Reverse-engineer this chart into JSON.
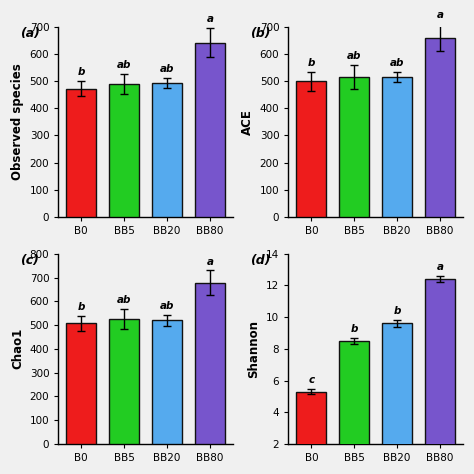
{
  "subplots": [
    {
      "label": "(a)",
      "ylabel": "Observed species",
      "ylim": [
        0,
        700
      ],
      "yticks": [
        0,
        100,
        200,
        300,
        400,
        500,
        600,
        700
      ],
      "categories": [
        "B0",
        "BB5",
        "BB20",
        "BB80"
      ],
      "values": [
        472,
        490,
        493,
        642
      ],
      "errors": [
        28,
        38,
        18,
        55
      ],
      "sig_labels": [
        "b",
        "ab",
        "ab",
        "a"
      ],
      "bar_colors": [
        "#ee1c1c",
        "#22cc22",
        "#55aaee",
        "#7755cc"
      ]
    },
    {
      "label": "(b)",
      "ylabel": "ACE",
      "ylim": [
        0,
        700
      ],
      "yticks": [
        0,
        100,
        200,
        300,
        400,
        500,
        600,
        700
      ],
      "categories": [
        "B0",
        "BB5",
        "BB20",
        "BB80"
      ],
      "values": [
        500,
        515,
        516,
        660
      ],
      "errors": [
        35,
        45,
        18,
        50
      ],
      "sig_labels": [
        "b",
        "ab",
        "ab",
        "a"
      ],
      "bar_colors": [
        "#ee1c1c",
        "#22cc22",
        "#55aaee",
        "#7755cc"
      ]
    },
    {
      "label": "(c)",
      "ylabel": "Chao1",
      "ylim": [
        0,
        800
      ],
      "yticks": [
        0,
        100,
        200,
        300,
        400,
        500,
        600,
        700,
        800
      ],
      "categories": [
        "B0",
        "BB5",
        "BB20",
        "BB80"
      ],
      "values": [
        507,
        525,
        520,
        678
      ],
      "errors": [
        30,
        42,
        22,
        52
      ],
      "sig_labels": [
        "b",
        "ab",
        "ab",
        "a"
      ],
      "bar_colors": [
        "#ee1c1c",
        "#22cc22",
        "#55aaee",
        "#7755cc"
      ]
    },
    {
      "label": "(d)",
      "ylabel": "Shannon",
      "ylim": [
        2,
        14
      ],
      "yticks": [
        2,
        4,
        6,
        8,
        10,
        12,
        14
      ],
      "categories": [
        "B0",
        "BB5",
        "BB20",
        "BB80"
      ],
      "values": [
        5.3,
        8.5,
        9.6,
        12.4
      ],
      "errors": [
        0.15,
        0.18,
        0.25,
        0.18
      ],
      "sig_labels": [
        "c",
        "b",
        "b",
        "a"
      ],
      "bar_colors": [
        "#ee1c1c",
        "#22cc22",
        "#55aaee",
        "#7755cc"
      ]
    }
  ],
  "fig_background": "#f0f0f0",
  "bar_width": 0.7,
  "bar_edge_color": "#111111",
  "bar_edge_width": 1.0,
  "error_color": "black",
  "error_capsize": 3,
  "error_linewidth": 1.0,
  "sig_fontsize": 7.5,
  "sig_fontweight": "bold",
  "axis_label_fontsize": 8.5,
  "tick_fontsize": 7.5,
  "panel_label_fontsize": 9,
  "panel_label_fontweight": "bold"
}
